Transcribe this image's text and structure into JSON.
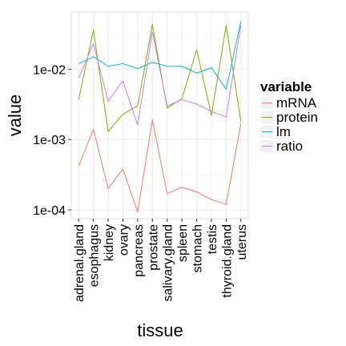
{
  "chart_data": {
    "type": "line",
    "scale_y": "log10",
    "xlabel": "tissue",
    "ylabel": "value",
    "ylim": [
      7.5e-05,
      0.065
    ],
    "y_ticks": [
      0.0001,
      0.001,
      0.01
    ],
    "y_tick_labels": [
      "1e-04",
      "1e-03",
      "1e-02"
    ],
    "grid": true,
    "legend_position": "right",
    "legend_title": "variable",
    "categories": [
      "adrenal.gland",
      "esophagus",
      "kidney",
      "ovary",
      "pancreas",
      "prostate",
      "salivary.gland",
      "spleen",
      "stomach",
      "testis",
      "thyroid.gland",
      "uterus"
    ],
    "series": [
      {
        "name": "mRNA",
        "color": "#F8766D",
        "values": [
          0.00042,
          0.0014,
          0.0002,
          0.00038,
          9.3e-05,
          0.0019,
          0.00017,
          0.00021,
          0.00018,
          0.00014,
          0.00012,
          0.0017
        ]
      },
      {
        "name": "protein",
        "color": "#7CAE00",
        "values": [
          0.0037,
          0.036,
          0.0013,
          0.0023,
          0.003,
          0.043,
          0.0028,
          0.0038,
          0.019,
          0.0022,
          0.042,
          0.0018
        ]
      },
      {
        "name": "lm",
        "color": "#00BFC4",
        "values": [
          0.012,
          0.015,
          0.011,
          0.012,
          0.0102,
          0.0125,
          0.011,
          0.011,
          0.0088,
          0.0105,
          0.0052,
          0.048
        ]
      },
      {
        "name": "ratio",
        "color": "#C77CFF",
        "values": [
          0.0075,
          0.023,
          0.0035,
          0.0068,
          0.0016,
          0.034,
          0.003,
          0.0037,
          0.0032,
          0.0025,
          0.0021,
          0.042
        ]
      }
    ]
  }
}
